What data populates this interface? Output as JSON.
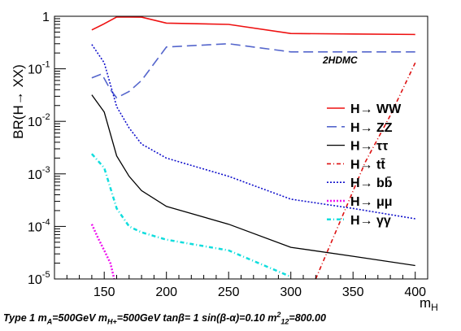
{
  "chart_data": {
    "type": "line",
    "ylabel": "BR(H→ XX)",
    "xlabel_main": "m",
    "xlabel_sub": "H",
    "watermark": "2HDMC",
    "y_scale": "log",
    "xlim": [
      110,
      410
    ],
    "ylim": [
      1e-05,
      1
    ],
    "x_ticks": [
      150,
      200,
      250,
      300,
      350,
      400
    ],
    "y_ticks": [
      {
        "value": 1e-05,
        "base": "10",
        "exp": "-5"
      },
      {
        "value": 0.0001,
        "base": "10",
        "exp": "-4"
      },
      {
        "value": 0.001,
        "base": "10",
        "exp": "-3"
      },
      {
        "value": 0.01,
        "base": "10",
        "exp": "-2"
      },
      {
        "value": 0.1,
        "base": "10",
        "exp": "-1"
      },
      {
        "value": 1,
        "base": "1",
        "exp": ""
      }
    ],
    "grid": false,
    "legend_position": "right",
    "series": [
      {
        "name": "H→ WW",
        "color": "#ee1111",
        "dash": "solid",
        "width": 1.6,
        "points": [
          [
            140,
            0.55
          ],
          [
            150,
            0.72
          ],
          [
            160,
            0.97
          ],
          [
            170,
            0.97
          ],
          [
            180,
            0.96
          ],
          [
            200,
            0.74
          ],
          [
            250,
            0.7
          ],
          [
            300,
            0.47
          ],
          [
            350,
            0.46
          ],
          [
            400,
            0.45
          ]
        ]
      },
      {
        "name": "H→ ZZ",
        "color": "#5566cc",
        "dash": "longdash",
        "width": 1.6,
        "points": [
          [
            140,
            0.067
          ],
          [
            148,
            0.08
          ],
          [
            155,
            0.04
          ],
          [
            160,
            0.028
          ],
          [
            170,
            0.037
          ],
          [
            180,
            0.06
          ],
          [
            200,
            0.26
          ],
          [
            250,
            0.3
          ],
          [
            300,
            0.21
          ],
          [
            350,
            0.21
          ],
          [
            400,
            0.21
          ]
        ]
      },
      {
        "name": "H→ ττ",
        "color": "#000000",
        "dash": "solid",
        "width": 1.3,
        "points": [
          [
            140,
            0.032
          ],
          [
            150,
            0.015
          ],
          [
            160,
            0.0022
          ],
          [
            170,
            0.0009
          ],
          [
            180,
            0.00048
          ],
          [
            200,
            0.00024
          ],
          [
            250,
            0.00011
          ],
          [
            300,
            4e-05
          ],
          [
            350,
            2.7e-05
          ],
          [
            400,
            1.8e-05
          ]
        ]
      },
      {
        "name": "H→ tt̄",
        "color": "#dd1111",
        "dash": "dashdot",
        "width": 1.6,
        "points": [
          [
            320,
            1e-05
          ],
          [
            340,
            0.00013
          ],
          [
            360,
            0.0017
          ],
          [
            380,
            0.013
          ],
          [
            400,
            0.13
          ]
        ]
      },
      {
        "name": "H→ bb̄",
        "color": "#1111cc",
        "dash": "dotted",
        "width": 1.6,
        "points": [
          [
            140,
            0.29
          ],
          [
            150,
            0.13
          ],
          [
            160,
            0.019
          ],
          [
            170,
            0.0075
          ],
          [
            180,
            0.0037
          ],
          [
            200,
            0.002
          ],
          [
            250,
            0.0009
          ],
          [
            300,
            0.00033
          ],
          [
            350,
            0.00022
          ],
          [
            400,
            0.00014
          ]
        ]
      },
      {
        "name": "H→ μμ",
        "color": "#ee11ee",
        "dash": "dotted",
        "width": 2.5,
        "points": [
          [
            140,
            0.00011
          ],
          [
            145,
            6e-05
          ],
          [
            150,
            3.5e-05
          ],
          [
            155,
            2e-05
          ],
          [
            158,
            1e-05
          ]
        ]
      },
      {
        "name": "H→ γγ",
        "color": "#11dddd",
        "dash": "dashdot",
        "width": 2.5,
        "points": [
          [
            140,
            0.0024
          ],
          [
            150,
            0.0013
          ],
          [
            160,
            0.00022
          ],
          [
            170,
            0.0001
          ],
          [
            180,
            7.7e-05
          ],
          [
            200,
            5.6e-05
          ],
          [
            250,
            3.5e-05
          ],
          [
            300,
            1.1e-05
          ]
        ]
      }
    ]
  },
  "caption": {
    "prefix": "Type 1 m",
    "sub_a": "A",
    "mid1": "=500GeV m",
    "sub_hp": "H+",
    "mid2": "=500GeV tanβ= 1 sin(β-α)=0.10 m",
    "sup_12": "2",
    "sub_12": "12",
    "suffix": "=800.00"
  }
}
